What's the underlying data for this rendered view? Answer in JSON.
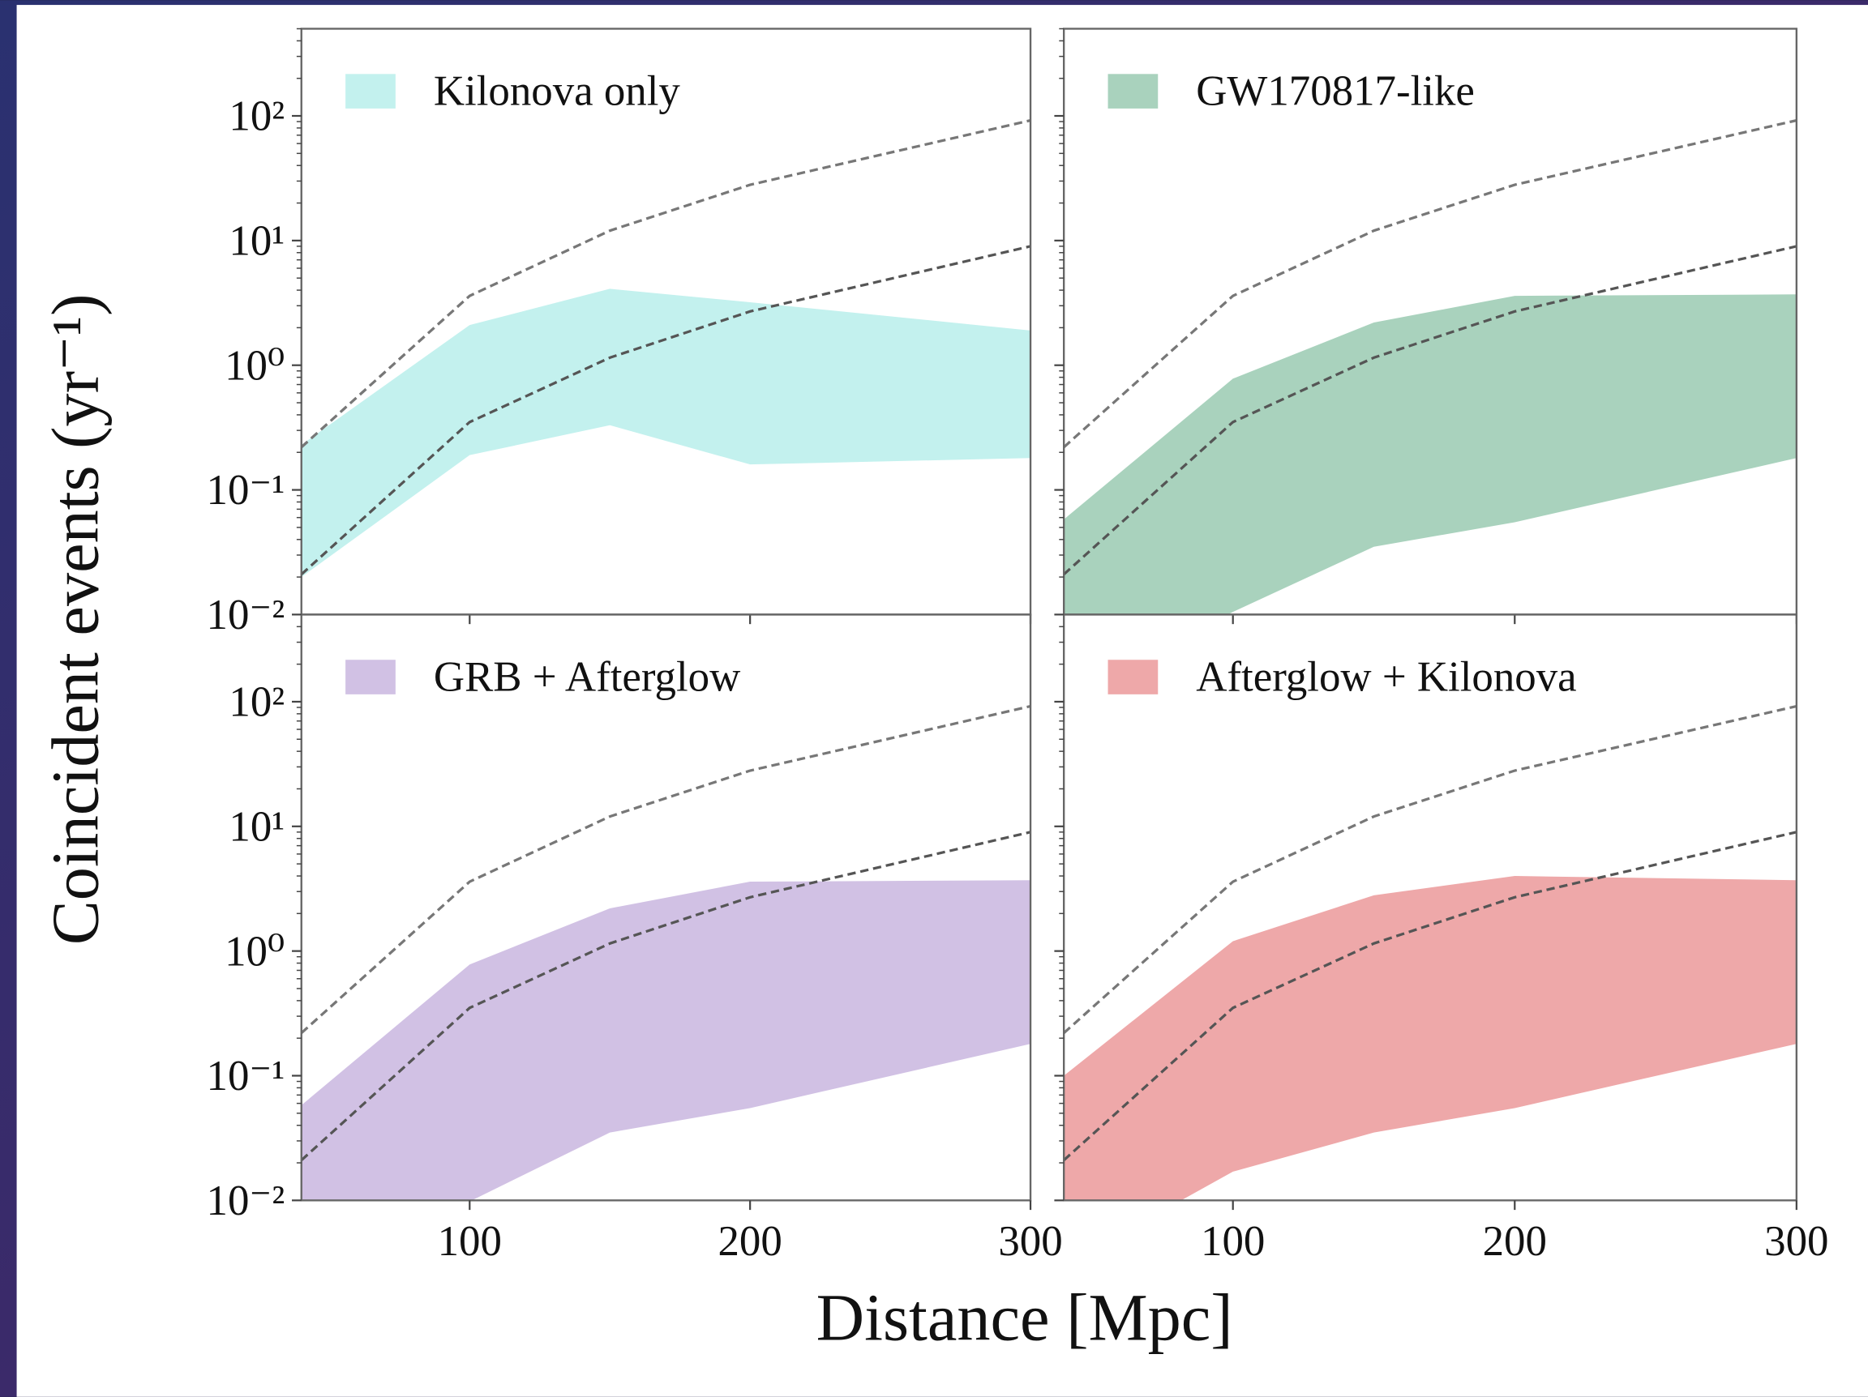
{
  "figure": {
    "xlabel": "Distance [Mpc]",
    "ylabel": "Coincident events (yr⁻¹)"
  },
  "chart_data": [
    {
      "type": "band",
      "log_y": true,
      "xlim": [
        40,
        300
      ],
      "ylim": [
        0.01,
        500
      ],
      "xticks": [
        100,
        200,
        300
      ],
      "yticks": [
        {
          "value": 0.01,
          "label": "10⁻²"
        },
        {
          "value": 0.1,
          "label": "10⁻¹"
        },
        {
          "value": 1,
          "label": "10⁰"
        },
        {
          "value": 10,
          "label": "10¹"
        },
        {
          "value": 100,
          "label": "10²"
        }
      ],
      "x": [
        40,
        100,
        150,
        200,
        300
      ],
      "series": [
        {
          "name": "Kilonova only",
          "color": "#c3f1ee",
          "lower": [
            0.02,
            0.19,
            0.33,
            0.16,
            0.18
          ],
          "upper": [
            0.23,
            2.1,
            4.1,
            3.2,
            1.9
          ]
        }
      ],
      "reference_lines": [
        {
          "color": "#777777",
          "values": [
            0.22,
            3.6,
            12,
            28,
            92
          ]
        },
        {
          "color": "#555555",
          "values": [
            0.021,
            0.35,
            1.15,
            2.7,
            9
          ]
        }
      ],
      "legend": "upper left"
    },
    {
      "type": "band",
      "log_y": true,
      "xlim": [
        40,
        300
      ],
      "ylim": [
        0.01,
        500
      ],
      "xticks": [
        100,
        200,
        300
      ],
      "yticks": [
        0.01,
        0.1,
        1,
        10,
        100
      ],
      "x": [
        40,
        100,
        150,
        200,
        300
      ],
      "series": [
        {
          "name": "GW170817-like",
          "color": "#a9d2bd",
          "lower": [
            0.002,
            0.0105,
            0.035,
            0.055,
            0.18
          ],
          "upper": [
            0.058,
            0.78,
            2.2,
            3.6,
            3.7
          ]
        }
      ],
      "reference_lines": [
        {
          "color": "#777777",
          "values": [
            0.22,
            3.6,
            12,
            28,
            92
          ]
        },
        {
          "color": "#555555",
          "values": [
            0.021,
            0.35,
            1.15,
            2.7,
            9
          ]
        }
      ],
      "legend": "upper left"
    },
    {
      "type": "band",
      "log_y": true,
      "xlim": [
        40,
        300
      ],
      "ylim": [
        0.01,
        500
      ],
      "xticks": [
        100,
        200,
        300
      ],
      "yticks": [
        {
          "value": 0.01,
          "label": "10⁻²"
        },
        {
          "value": 0.1,
          "label": "10⁻¹"
        },
        {
          "value": 1,
          "label": "10⁰"
        },
        {
          "value": 10,
          "label": "10¹"
        },
        {
          "value": 100,
          "label": "10²"
        }
      ],
      "x": [
        40,
        100,
        150,
        200,
        300
      ],
      "series": [
        {
          "name": "GRB + Afterglow",
          "color": "#d1c1e4",
          "lower": [
            0.002,
            0.0098,
            0.035,
            0.055,
            0.18
          ],
          "upper": [
            0.058,
            0.78,
            2.2,
            3.6,
            3.7
          ]
        }
      ],
      "reference_lines": [
        {
          "color": "#777777",
          "values": [
            0.22,
            3.6,
            12,
            28,
            92
          ]
        },
        {
          "color": "#555555",
          "values": [
            0.021,
            0.35,
            1.15,
            2.7,
            9
          ]
        }
      ],
      "legend": "upper left"
    },
    {
      "type": "band",
      "log_y": true,
      "xlim": [
        40,
        300
      ],
      "ylim": [
        0.01,
        500
      ],
      "xticks": [
        100,
        200,
        300
      ],
      "yticks": [
        0.01,
        0.1,
        1,
        10,
        100
      ],
      "x": [
        40,
        100,
        150,
        200,
        300
      ],
      "series": [
        {
          "name": "Afterglow + Kilonova",
          "color": "#eea8a9",
          "lower": [
            0.003,
            0.017,
            0.035,
            0.055,
            0.18
          ],
          "upper": [
            0.1,
            1.2,
            2.8,
            4.0,
            3.7
          ]
        }
      ],
      "reference_lines": [
        {
          "color": "#777777",
          "values": [
            0.22,
            3.6,
            12,
            28,
            92
          ]
        },
        {
          "color": "#555555",
          "values": [
            0.021,
            0.35,
            1.15,
            2.7,
            9
          ]
        }
      ],
      "legend": "upper left"
    }
  ]
}
